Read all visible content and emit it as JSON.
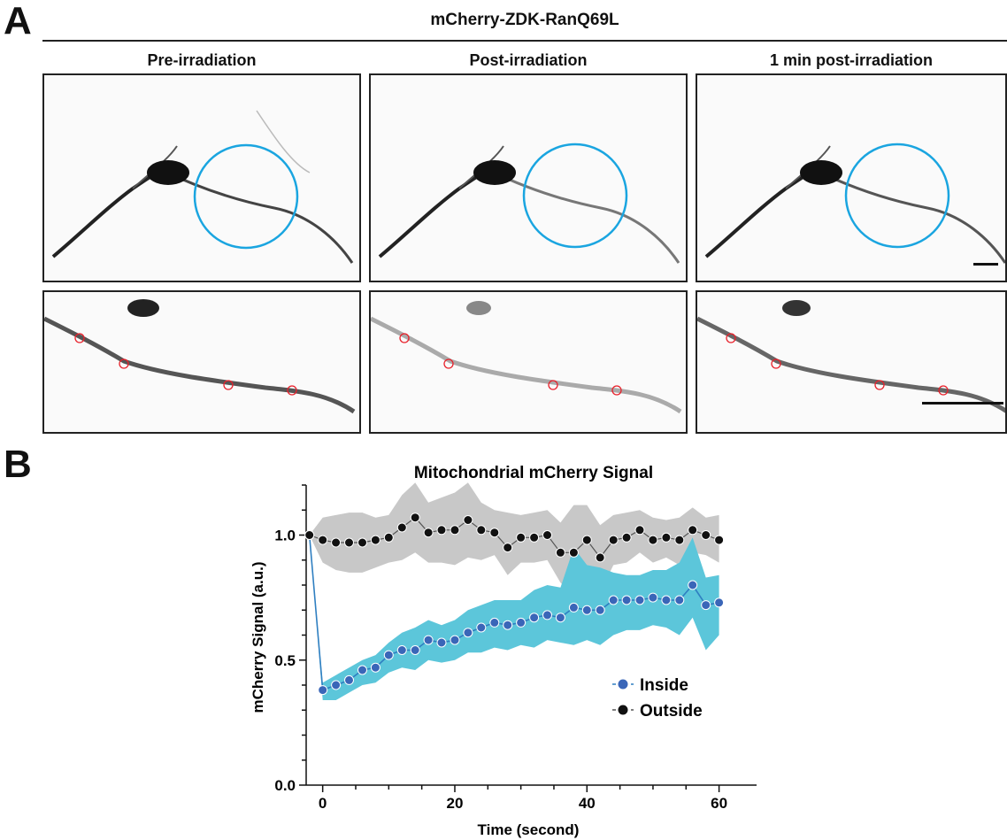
{
  "figure": {
    "panel_a_letter": "A",
    "panel_b_letter": "B",
    "construct_title": "mCherry-ZDK-RanQ69L",
    "columns": [
      {
        "label": "Pre-irradiation"
      },
      {
        "label": "Post-irradiation"
      },
      {
        "label": "1 min post-irradiation"
      }
    ],
    "colors": {
      "irradiation_circle": "#1aa5e0",
      "roi_circle": "#e8202a",
      "cell_signal": "#111111"
    }
  },
  "chart_data": {
    "type": "line",
    "title": "Mitochondrial mCherry Signal",
    "xlabel": "Time (second)",
    "ylabel": "mCherry Signal (a.u.)",
    "xlim": [
      -2.5,
      63
    ],
    "ylim": [
      0,
      1.2
    ],
    "xticks": [
      0,
      20,
      40,
      60
    ],
    "yticks": [
      0.0,
      0.5,
      1.0
    ],
    "ytick_labels": [
      "0.0",
      "0.5",
      "1.0"
    ],
    "legend_position": "bottom-right",
    "series": [
      {
        "name": "Inside",
        "color": "#3a66b8",
        "band_color": "#5cc6da",
        "x": [
          -2,
          0,
          2,
          4,
          6,
          8,
          10,
          12,
          14,
          16,
          18,
          20,
          22,
          24,
          26,
          28,
          30,
          32,
          34,
          36,
          38,
          40,
          42,
          44,
          46,
          48,
          50,
          52,
          54,
          56,
          58,
          60
        ],
        "y": [
          1.0,
          0.38,
          0.4,
          0.42,
          0.46,
          0.47,
          0.52,
          0.54,
          0.54,
          0.58,
          0.57,
          0.58,
          0.61,
          0.63,
          0.65,
          0.64,
          0.65,
          0.67,
          0.68,
          0.67,
          0.71,
          0.7,
          0.7,
          0.74,
          0.74,
          0.74,
          0.75,
          0.74,
          0.74,
          0.8,
          0.72,
          0.73
        ],
        "band_upper": [
          1.0,
          0.41,
          0.44,
          0.47,
          0.5,
          0.52,
          0.57,
          0.61,
          0.63,
          0.66,
          0.64,
          0.66,
          0.7,
          0.72,
          0.74,
          0.74,
          0.74,
          0.78,
          0.8,
          0.79,
          0.95,
          0.88,
          0.87,
          0.85,
          0.84,
          0.84,
          0.86,
          0.86,
          0.89,
          0.99,
          0.83,
          0.84
        ],
        "band_lower": [
          1.0,
          0.34,
          0.34,
          0.37,
          0.4,
          0.41,
          0.45,
          0.47,
          0.46,
          0.5,
          0.49,
          0.5,
          0.53,
          0.53,
          0.55,
          0.54,
          0.56,
          0.55,
          0.58,
          0.57,
          0.56,
          0.58,
          0.56,
          0.6,
          0.62,
          0.62,
          0.64,
          0.63,
          0.6,
          0.67,
          0.54,
          0.6
        ]
      },
      {
        "name": "Outside",
        "color": "#111111",
        "band_color": "#c8c8c8",
        "x": [
          -2,
          0,
          2,
          4,
          6,
          8,
          10,
          12,
          14,
          16,
          18,
          20,
          22,
          24,
          26,
          28,
          30,
          32,
          34,
          36,
          38,
          40,
          42,
          44,
          46,
          48,
          50,
          52,
          54,
          56,
          58,
          60
        ],
        "y": [
          1.0,
          0.98,
          0.97,
          0.97,
          0.97,
          0.98,
          0.99,
          1.03,
          1.07,
          1.01,
          1.02,
          1.02,
          1.06,
          1.02,
          1.01,
          0.95,
          0.99,
          0.99,
          1.0,
          0.93,
          0.93,
          0.98,
          0.91,
          0.98,
          0.99,
          1.02,
          0.98,
          0.99,
          0.98,
          1.02,
          1.0,
          0.98
        ],
        "band_upper": [
          1.0,
          1.07,
          1.08,
          1.09,
          1.09,
          1.07,
          1.08,
          1.16,
          1.21,
          1.13,
          1.15,
          1.17,
          1.21,
          1.13,
          1.1,
          1.09,
          1.08,
          1.09,
          1.1,
          1.05,
          1.12,
          1.12,
          1.04,
          1.08,
          1.09,
          1.1,
          1.07,
          1.06,
          1.07,
          1.11,
          1.07,
          1.08
        ],
        "band_lower": [
          1.0,
          0.89,
          0.86,
          0.85,
          0.85,
          0.87,
          0.89,
          0.9,
          0.93,
          0.89,
          0.89,
          0.88,
          0.91,
          0.9,
          0.92,
          0.84,
          0.89,
          0.89,
          0.9,
          0.81,
          0.76,
          0.84,
          0.77,
          0.88,
          0.89,
          0.93,
          0.89,
          0.91,
          0.88,
          0.93,
          0.92,
          0.89
        ]
      }
    ]
  }
}
